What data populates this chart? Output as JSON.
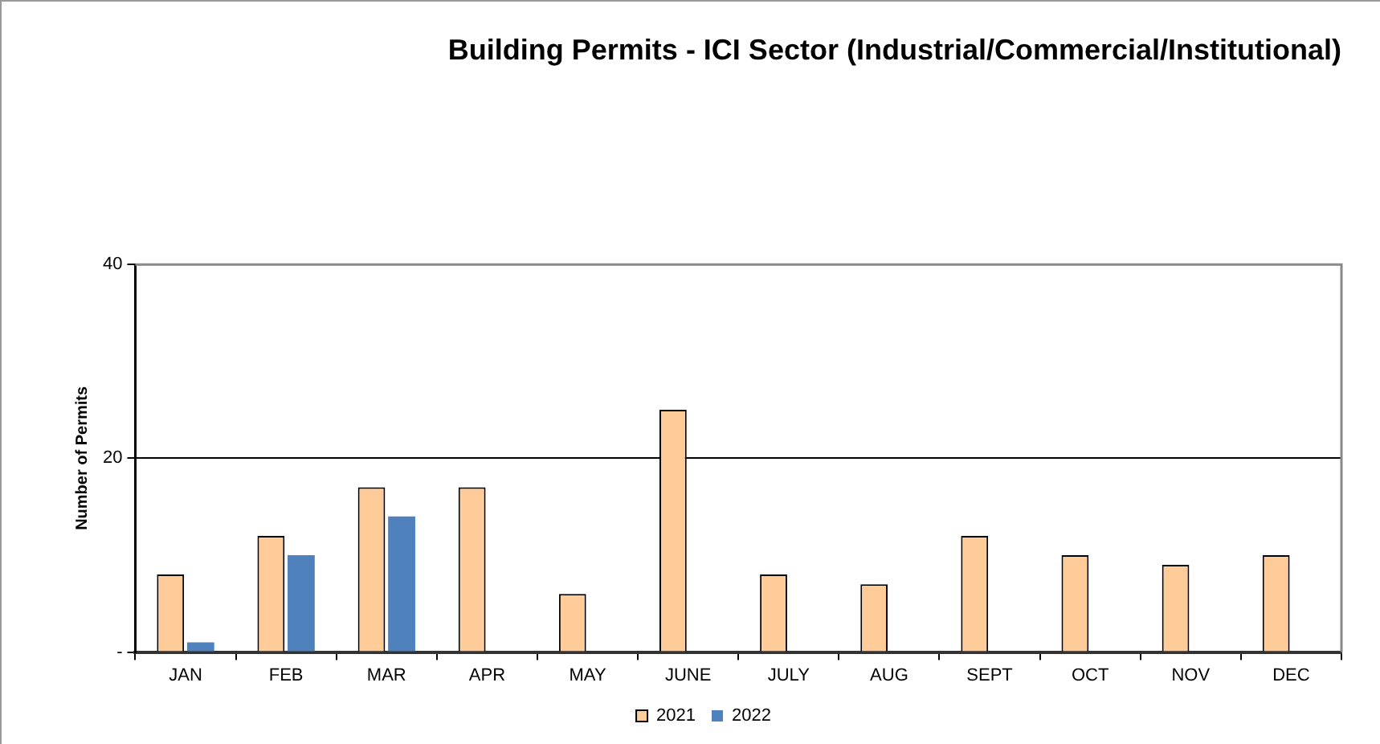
{
  "chart_data": {
    "type": "bar",
    "title": "Building Permits - ICI Sector (Industrial/Commercial/Institutional)",
    "ylabel": "Number of Permits",
    "categories": [
      "JAN",
      "FEB",
      "MAR",
      "APR",
      "MAY",
      "JUNE",
      "JULY",
      "AUG",
      "SEPT",
      "OCT",
      "NOV",
      "DEC"
    ],
    "series": [
      {
        "name": "2021",
        "color": "#ffcc99",
        "values": [
          8,
          12,
          17,
          17,
          6,
          25,
          8,
          7,
          12,
          10,
          9,
          10
        ]
      },
      {
        "name": "2022",
        "color": "#4f81bd",
        "values": [
          1,
          10,
          14,
          null,
          null,
          null,
          null,
          null,
          null,
          null,
          null,
          null
        ]
      }
    ],
    "ylim": [
      0,
      40
    ],
    "yticks": [
      {
        "value": 0,
        "label": "-"
      },
      20,
      40
    ],
    "grid": "y",
    "legend": "bottom"
  }
}
